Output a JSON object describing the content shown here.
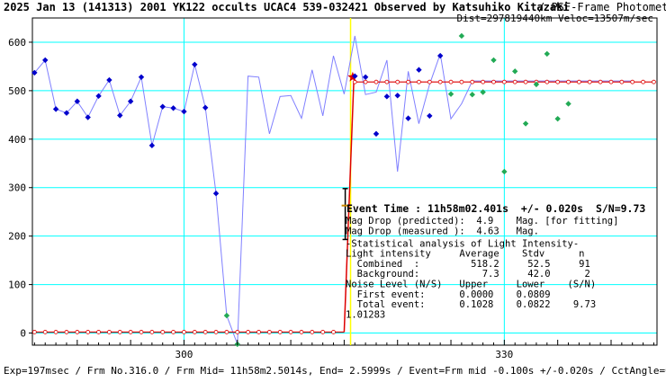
{
  "header": {
    "title_bold": "2025 Jan 13 (141313) 2001 YK122 occults UCAC4 539-032421 Observed by Katsuhiko Kitazaki",
    "title_tail": "/ PSF-Frame Photometry /",
    "subtitle": "Dist=297819440km Veloc=13507m/sec"
  },
  "footer": {
    "text": "Exp=197msec / Frm No.316.0 / Frm Mid= 11h58m2.5014s, End= 2.5999s / Event=Frm mid -0.100s +/-0.020s / CctAngle=0.0deg"
  },
  "colors": {
    "grid": "#00ffff",
    "light_curve": "#8080ff",
    "blue_points": "#0000cc",
    "green_points": "#22aa55",
    "model": "#dd0000",
    "event_line": "#ffff00"
  },
  "annotation": {
    "lines": [
      "Event Time : 11h58m02.401s  +/- 0.020s  S/N=9.73",
      "Mag Drop (predicted):  4.9    Mag. [for fitting]",
      "Mag Drop (measured ):  4.63   Mag.",
      "-Statistical analysis of Light Intensity-",
      "Light intensity     Average    Stdv      n",
      "  Combined  :         518.2     52.5     91",
      "  Background:           7.3     42.0      2",
      "Noise Level (N/S)   Upper     Lower    (S/N)",
      "  First event:      0.0000    0.0809",
      "  Total event:      0.1028    0.0822    9.73",
      "1.01283"
    ]
  },
  "chart_data": {
    "type": "line",
    "title": "2025 Jan 13 (141313) 2001 YK122 occults UCAC4 539-032421 Observed by Katsuhiko Kitazaki",
    "xlim": [
      285.8,
      344.3
    ],
    "ylim": [
      -25,
      650
    ],
    "x_ticks": [
      300,
      330
    ],
    "y_ticks": [
      0,
      100,
      200,
      300,
      400,
      500,
      600
    ],
    "grid": true,
    "event_frame": 315.6,
    "error_bar": {
      "x": 315.1,
      "ymin": 193,
      "ymax": 298,
      "center": 263
    },
    "series": [
      {
        "x": [
          286,
          287,
          288,
          289,
          290,
          291,
          292,
          293,
          294,
          295,
          296,
          297,
          298,
          299,
          300,
          301,
          302,
          303,
          304,
          305,
          306,
          307,
          308,
          309,
          310,
          311,
          312,
          313
        ],
        "values": [
          537,
          563,
          462,
          454,
          478,
          445,
          489,
          522,
          449,
          478,
          528,
          387,
          467,
          464,
          457,
          554,
          465,
          288,
          36,
          -23,
          530,
          528,
          411,
          488,
          490,
          443,
          543,
          448
        ]
      },
      {
        "x": [
          313,
          314,
          315,
          316,
          317,
          318,
          319,
          320,
          321,
          322,
          323,
          324,
          325,
          326,
          327,
          328,
          329,
          330,
          331,
          332,
          333
        ],
        "values": [
          572,
          493,
          613,
          492,
          497,
          563,
          333,
          540,
          432,
          513,
          576,
          442,
          473,
          520,
          520,
          520,
          520,
          520,
          520,
          520,
          520
        ]
      }
    ],
    "light_curve": {
      "x": [
        286,
        287,
        288,
        289,
        290,
        291,
        292,
        293,
        294,
        295,
        296,
        297,
        298,
        299,
        300,
        301,
        302,
        303,
        304,
        305,
        306,
        307,
        308,
        309,
        310,
        311,
        312,
        313,
        314,
        315,
        316,
        317,
        318,
        319,
        320,
        321,
        322,
        323,
        324,
        325,
        326,
        327,
        328,
        329,
        330,
        331,
        332,
        333,
        334,
        335,
        336,
        337,
        338,
        339,
        340,
        341,
        342
      ],
      "y": [
        537,
        563,
        462,
        454,
        478,
        445,
        489,
        522,
        449,
        478,
        528,
        387,
        467,
        464,
        457,
        554,
        465,
        288,
        36,
        -23,
        530,
        528,
        411,
        488,
        490,
        443,
        543,
        448,
        572,
        493,
        613,
        492,
        497,
        563,
        333,
        540,
        432,
        513,
        576,
        442,
        473,
        520,
        520,
        520,
        520,
        520,
        520,
        520,
        520,
        520,
        520,
        520,
        520,
        520,
        520,
        520,
        520
      ]
    },
    "points": [
      {
        "x": 286,
        "y": 537,
        "c": "b"
      },
      {
        "x": 287,
        "y": 563,
        "c": "b"
      },
      {
        "x": 288,
        "y": 462,
        "c": "b"
      },
      {
        "x": 289,
        "y": 454,
        "c": "b"
      },
      {
        "x": 290,
        "y": 478,
        "c": "b"
      },
      {
        "x": 291,
        "y": 445,
        "c": "b"
      },
      {
        "x": 292,
        "y": 489,
        "c": "b"
      },
      {
        "x": 293,
        "y": 522,
        "c": "b"
      },
      {
        "x": 294,
        "y": 449,
        "c": "b"
      },
      {
        "x": 295,
        "y": 478,
        "c": "b"
      },
      {
        "x": 296,
        "y": 528,
        "c": "b"
      },
      {
        "x": 297,
        "y": 387,
        "c": "b"
      },
      {
        "x": 298,
        "y": 467,
        "c": "b"
      },
      {
        "x": 299,
        "y": 464,
        "c": "b"
      },
      {
        "x": 300,
        "y": 457,
        "c": "b"
      },
      {
        "x": 301,
        "y": 554,
        "c": "b"
      },
      {
        "x": 302,
        "y": 465,
        "c": "b"
      },
      {
        "x": 303,
        "y": 288,
        "c": "b"
      },
      {
        "x": 304,
        "y": 36,
        "c": "g"
      },
      {
        "x": 305,
        "y": -23,
        "c": "g"
      },
      {
        "x": 316,
        "y": 530,
        "c": "b"
      },
      {
        "x": 317,
        "y": 528,
        "c": "b"
      },
      {
        "x": 318,
        "y": 411,
        "c": "b"
      },
      {
        "x": 319,
        "y": 488,
        "c": "b"
      },
      {
        "x": 320,
        "y": 490,
        "c": "b"
      },
      {
        "x": 321,
        "y": 443,
        "c": "b"
      },
      {
        "x": 322,
        "y": 543,
        "c": "b"
      },
      {
        "x": 323,
        "y": 448,
        "c": "b"
      },
      {
        "x": 324,
        "y": 572,
        "c": "b"
      },
      {
        "x": 325,
        "y": 493,
        "c": "g"
      },
      {
        "x": 326,
        "y": 613,
        "c": "g"
      },
      {
        "x": 327,
        "y": 492,
        "c": "g"
      },
      {
        "x": 328,
        "y": 497,
        "c": "g"
      },
      {
        "x": 329,
        "y": 563,
        "c": "g"
      },
      {
        "x": 330,
        "y": 333,
        "c": "g"
      },
      {
        "x": 331,
        "y": 540,
        "c": "g"
      },
      {
        "x": 332,
        "y": 432,
        "c": "g"
      },
      {
        "x": 333,
        "y": 513,
        "c": "g"
      },
      {
        "x": 334,
        "y": 576,
        "c": "g"
      },
      {
        "x": 335,
        "y": 442,
        "c": "g"
      },
      {
        "x": 336,
        "y": 473,
        "c": "g"
      }
    ],
    "model": {
      "baseline_low": 2,
      "baseline_high": 518,
      "drop_start": 315.0,
      "drop_end": 315.9,
      "x_start": 285.8,
      "x_end": 344.0
    }
  }
}
